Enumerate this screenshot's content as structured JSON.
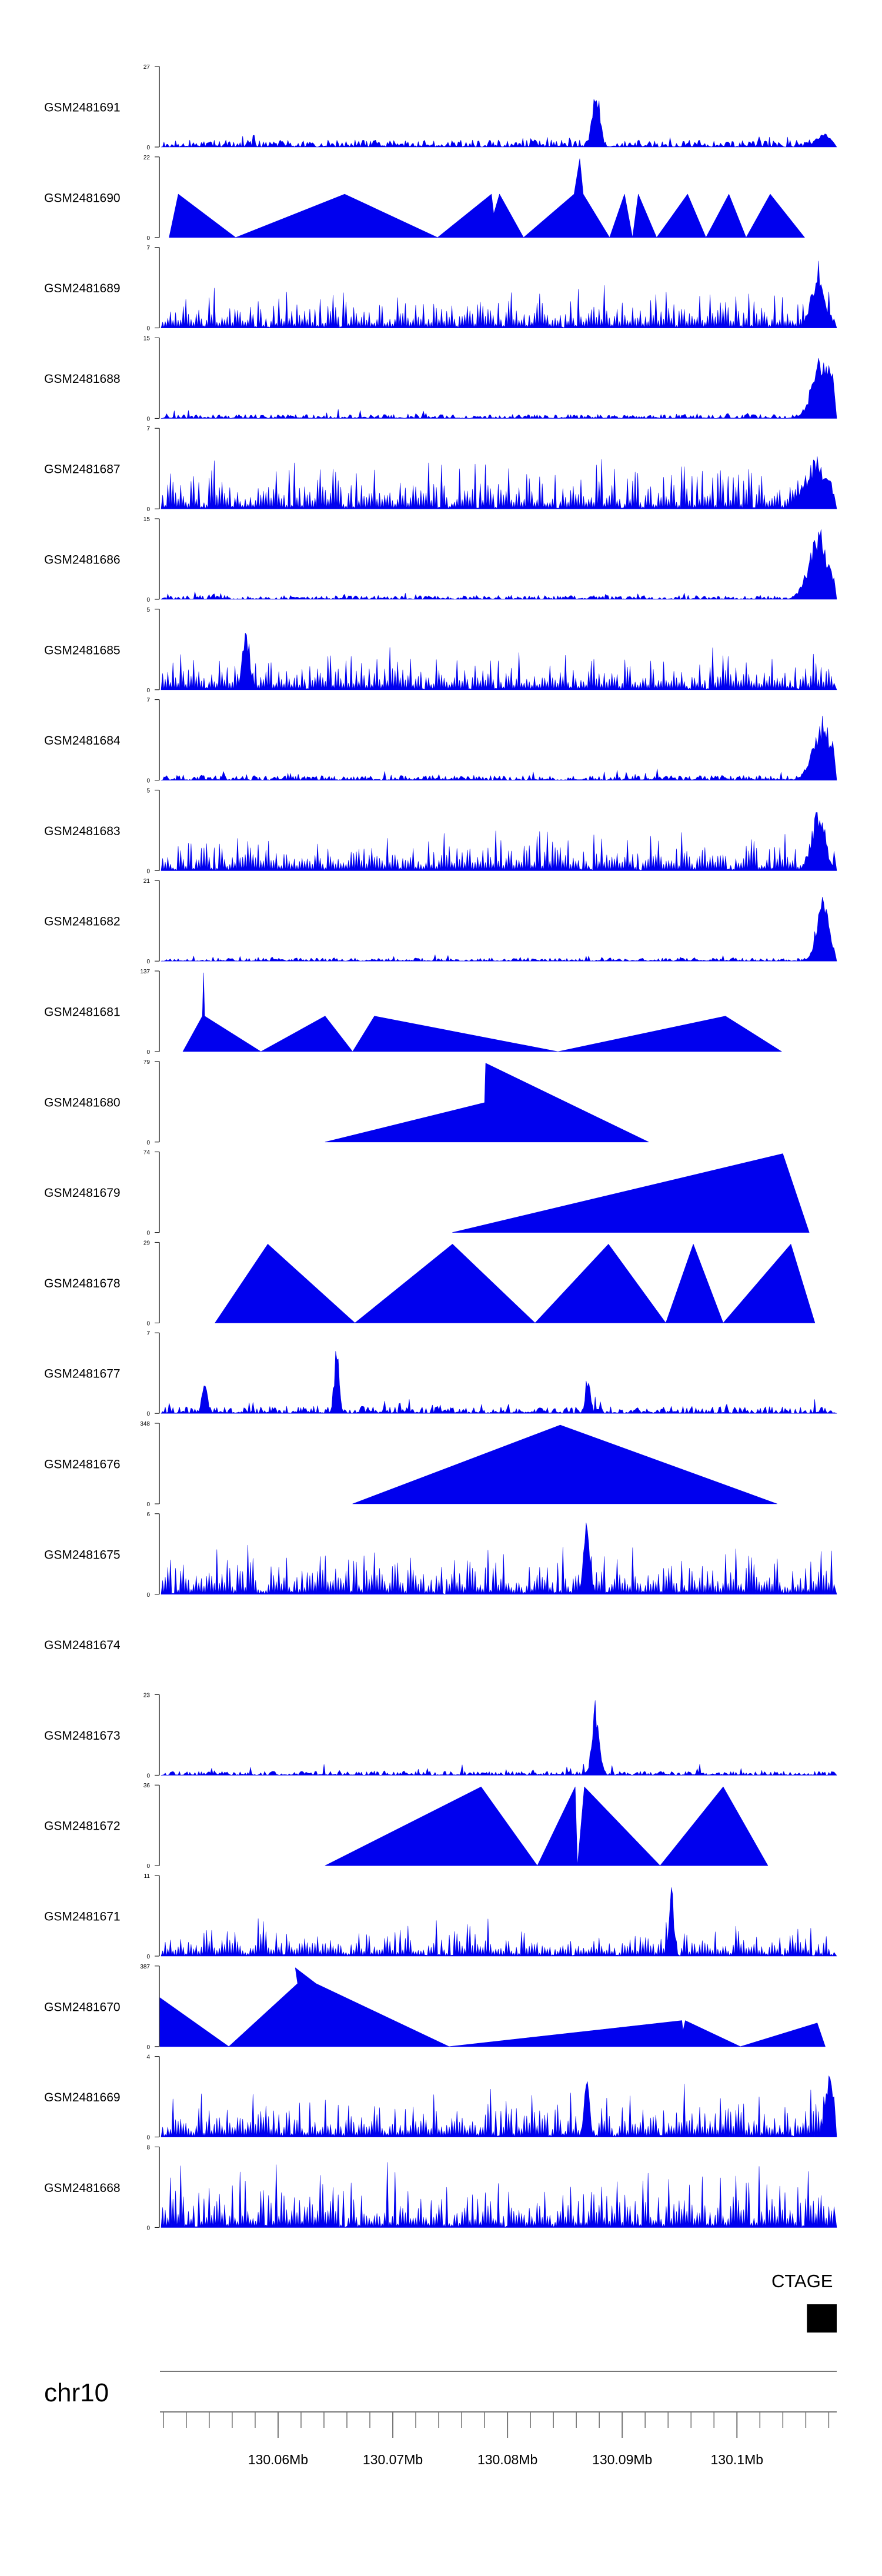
{
  "chart_data": {
    "type": "area",
    "accent_color": "#0000ee",
    "x_unit": "Mb",
    "x_range": [
      130.0497,
      130.1087
    ],
    "tracks": [
      {
        "name": "GSM2481691",
        "ymax": "27",
        "ymin": "0",
        "style": "jagged",
        "seed": 11,
        "base": 0.09,
        "noise": 0.1,
        "peaks": [
          [
            130.0877,
            1.0,
            0.00045
          ],
          [
            130.1075,
            0.18,
            0.0009
          ]
        ]
      },
      {
        "name": "GSM2481690",
        "ymax": "22",
        "ymin": "0",
        "style": "triangles",
        "points": [
          [
            130.0505,
            0.0
          ],
          [
            130.0513,
            0.55
          ],
          [
            130.0563,
            0.0
          ],
          [
            130.0658,
            0.55
          ],
          [
            130.0739,
            0.0
          ],
          [
            130.0786,
            0.55
          ],
          [
            130.0788,
            0.3
          ],
          [
            130.0793,
            0.55
          ],
          [
            130.0814,
            0.0
          ],
          [
            130.0858,
            0.55
          ],
          [
            130.0863,
            1.0
          ],
          [
            130.0866,
            0.55
          ],
          [
            130.0889,
            0.0
          ],
          [
            130.0902,
            0.55
          ],
          [
            130.0909,
            0.0
          ],
          [
            130.0914,
            0.55
          ],
          [
            130.093,
            0.0
          ],
          [
            130.0957,
            0.55
          ],
          [
            130.0973,
            0.0
          ],
          [
            130.0993,
            0.55
          ],
          [
            130.1008,
            0.0
          ],
          [
            130.1029,
            0.55
          ],
          [
            130.1059,
            0.0
          ]
        ]
      },
      {
        "name": "GSM2481689",
        "ymax": "7",
        "ymin": "0",
        "style": "spiky",
        "seed": 21,
        "base": 0.12,
        "noise": 0.45,
        "peaks": [
          [
            130.1071,
            0.9,
            0.0008
          ]
        ]
      },
      {
        "name": "GSM2481688",
        "ymax": "15",
        "ymin": "0",
        "style": "jagged",
        "seed": 31,
        "base": 0.05,
        "noise": 0.09,
        "peaks": [
          [
            130.1075,
            0.95,
            0.0012
          ]
        ]
      },
      {
        "name": "GSM2481687",
        "ymax": "7",
        "ymin": "0",
        "style": "spiky",
        "seed": 41,
        "base": 0.12,
        "noise": 0.6,
        "peaks": [
          [
            130.107,
            0.7,
            0.0015
          ]
        ]
      },
      {
        "name": "GSM2481686",
        "ymax": "15",
        "ymin": "0",
        "style": "jagged",
        "seed": 51,
        "base": 0.05,
        "noise": 0.08,
        "peaks": [
          [
            130.1072,
            0.9,
            0.0013
          ]
        ]
      },
      {
        "name": "GSM2481685",
        "ymax": "5",
        "ymin": "0",
        "style": "spiky",
        "seed": 61,
        "base": 0.12,
        "noise": 0.45,
        "peaks": [
          [
            130.0572,
            0.95,
            0.0004
          ]
        ]
      },
      {
        "name": "GSM2481684",
        "ymax": "7",
        "ymin": "0",
        "style": "jagged",
        "seed": 71,
        "base": 0.06,
        "noise": 0.12,
        "peaks": [
          [
            130.1075,
            0.85,
            0.0012
          ]
        ]
      },
      {
        "name": "GSM2481683",
        "ymax": "5",
        "ymin": "0",
        "style": "spiky",
        "seed": 81,
        "base": 0.12,
        "noise": 0.45,
        "peaks": [
          [
            130.1071,
            0.9,
            0.0008
          ]
        ]
      },
      {
        "name": "GSM2481682",
        "ymax": "21",
        "ymin": "0",
        "style": "jagged",
        "seed": 91,
        "base": 0.04,
        "noise": 0.06,
        "peaks": [
          [
            130.1075,
            0.9,
            0.0008
          ]
        ]
      },
      {
        "name": "GSM2481681",
        "ymax": "137",
        "ymin": "0",
        "style": "triangles",
        "points": [
          [
            130.0517,
            0.0
          ],
          [
            130.0534,
            0.45
          ],
          [
            130.0535,
            1.0
          ],
          [
            130.0536,
            0.45
          ],
          [
            130.0585,
            0.0
          ],
          [
            130.0641,
            0.45
          ],
          [
            130.0665,
            0.0
          ],
          [
            130.0684,
            0.45
          ],
          [
            130.0844,
            0.0
          ],
          [
            130.099,
            0.45
          ],
          [
            130.1039,
            0.0
          ]
        ]
      },
      {
        "name": "GSM2481680",
        "ymax": "79",
        "ymin": "0",
        "style": "triangles",
        "points": [
          [
            130.0641,
            0.0
          ],
          [
            130.078,
            0.5
          ],
          [
            130.0781,
            1.0
          ],
          [
            130.0923,
            0.0
          ]
        ]
      },
      {
        "name": "GSM2481679",
        "ymax": "74",
        "ymin": "0",
        "style": "triangles",
        "points": [
          [
            130.0752,
            0.0
          ],
          [
            130.104,
            1.0
          ],
          [
            130.1063,
            0.0
          ]
        ]
      },
      {
        "name": "GSM2481678",
        "ymax": "29",
        "ymin": "0",
        "style": "triangles",
        "points": [
          [
            130.0545,
            0.0
          ],
          [
            130.0591,
            1.0
          ],
          [
            130.0667,
            0.0
          ],
          [
            130.0752,
            1.0
          ],
          [
            130.0824,
            0.0
          ],
          [
            130.0888,
            1.0
          ],
          [
            130.0938,
            0.0
          ],
          [
            130.0962,
            1.0
          ],
          [
            130.0988,
            0.0
          ],
          [
            130.1047,
            1.0
          ],
          [
            130.1068,
            0.0
          ]
        ]
      },
      {
        "name": "GSM2481677",
        "ymax": "7",
        "ymin": "0",
        "style": "jagged",
        "seed": 101,
        "base": 0.09,
        "noise": 0.22,
        "peaks": [
          [
            130.0651,
            0.95,
            0.0003
          ],
          [
            130.0536,
            0.5,
            0.0003
          ],
          [
            130.087,
            0.55,
            0.0003
          ]
        ]
      },
      {
        "name": "GSM2481676",
        "ymax": "348",
        "ymin": "0",
        "style": "triangles",
        "points": [
          [
            130.0665,
            0.0
          ],
          [
            130.0846,
            1.0
          ],
          [
            130.1035,
            0.0
          ]
        ]
      },
      {
        "name": "GSM2481675",
        "ymax": "6",
        "ymin": "0",
        "style": "spiky",
        "seed": 111,
        "base": 0.15,
        "noise": 0.6,
        "peaks": [
          [
            130.0869,
            0.95,
            0.0004
          ]
        ]
      },
      {
        "name": "GSM2481674",
        "ymax": "",
        "ymin": "",
        "style": "empty"
      },
      {
        "name": "GSM2481673",
        "ymax": "23",
        "ymin": "0",
        "style": "jagged",
        "seed": 121,
        "base": 0.05,
        "noise": 0.14,
        "peaks": [
          [
            130.0877,
            1.0,
            0.00045
          ]
        ]
      },
      {
        "name": "GSM2481672",
        "ymax": "36",
        "ymin": "0",
        "style": "triangles",
        "points": [
          [
            130.0641,
            0.0
          ],
          [
            130.0777,
            1.0
          ],
          [
            130.0826,
            0.0
          ],
          [
            130.0859,
            1.0
          ],
          [
            130.0861,
            0.0
          ],
          [
            130.0867,
            1.0
          ],
          [
            130.0933,
            0.0
          ],
          [
            130.0988,
            1.0
          ],
          [
            130.1027,
            0.0
          ]
        ]
      },
      {
        "name": "GSM2481671",
        "ymax": "11",
        "ymin": "0",
        "style": "spiky",
        "seed": 131,
        "base": 0.1,
        "noise": 0.35,
        "peaks": [
          [
            130.0943,
            0.95,
            0.0003
          ]
        ]
      },
      {
        "name": "GSM2481670",
        "ymax": "387",
        "ymin": "0",
        "style": "triangles",
        "points": [
          [
            130.0497,
            0.62
          ],
          [
            130.0557,
            0.0
          ],
          [
            130.0617,
            0.8
          ],
          [
            130.0615,
            1.0
          ],
          [
            130.0633,
            0.8
          ],
          [
            130.0749,
            0.0
          ],
          [
            130.0952,
            0.33
          ],
          [
            130.0953,
            0.2
          ],
          [
            130.0955,
            0.33
          ],
          [
            130.1003,
            0.0
          ],
          [
            130.107,
            0.3
          ],
          [
            130.1077,
            0.0
          ]
        ]
      },
      {
        "name": "GSM2481669",
        "ymax": "4",
        "ymin": "0",
        "style": "spiky",
        "seed": 141,
        "base": 0.13,
        "noise": 0.5,
        "peaks": [
          [
            130.0869,
            0.95,
            0.0003
          ],
          [
            130.1081,
            0.95,
            0.0005
          ]
        ]
      },
      {
        "name": "GSM2481668",
        "ymax": "8",
        "ymin": "0",
        "style": "spiky",
        "seed": 151,
        "base": 0.15,
        "noise": 0.75,
        "peaks": []
      }
    ],
    "gene": {
      "label": "CTAGE",
      "start": 130.1061,
      "end": 130.1087
    },
    "chromosome": "chr10",
    "ticks": [
      {
        "value": 130.06,
        "label": "130.06Mb"
      },
      {
        "value": 130.07,
        "label": "130.07Mb"
      },
      {
        "value": 130.08,
        "label": "130.08Mb"
      },
      {
        "value": 130.09,
        "label": "130.09Mb"
      },
      {
        "value": 130.1,
        "label": "130.1Mb"
      }
    ],
    "minor_tick_step": 0.002
  }
}
